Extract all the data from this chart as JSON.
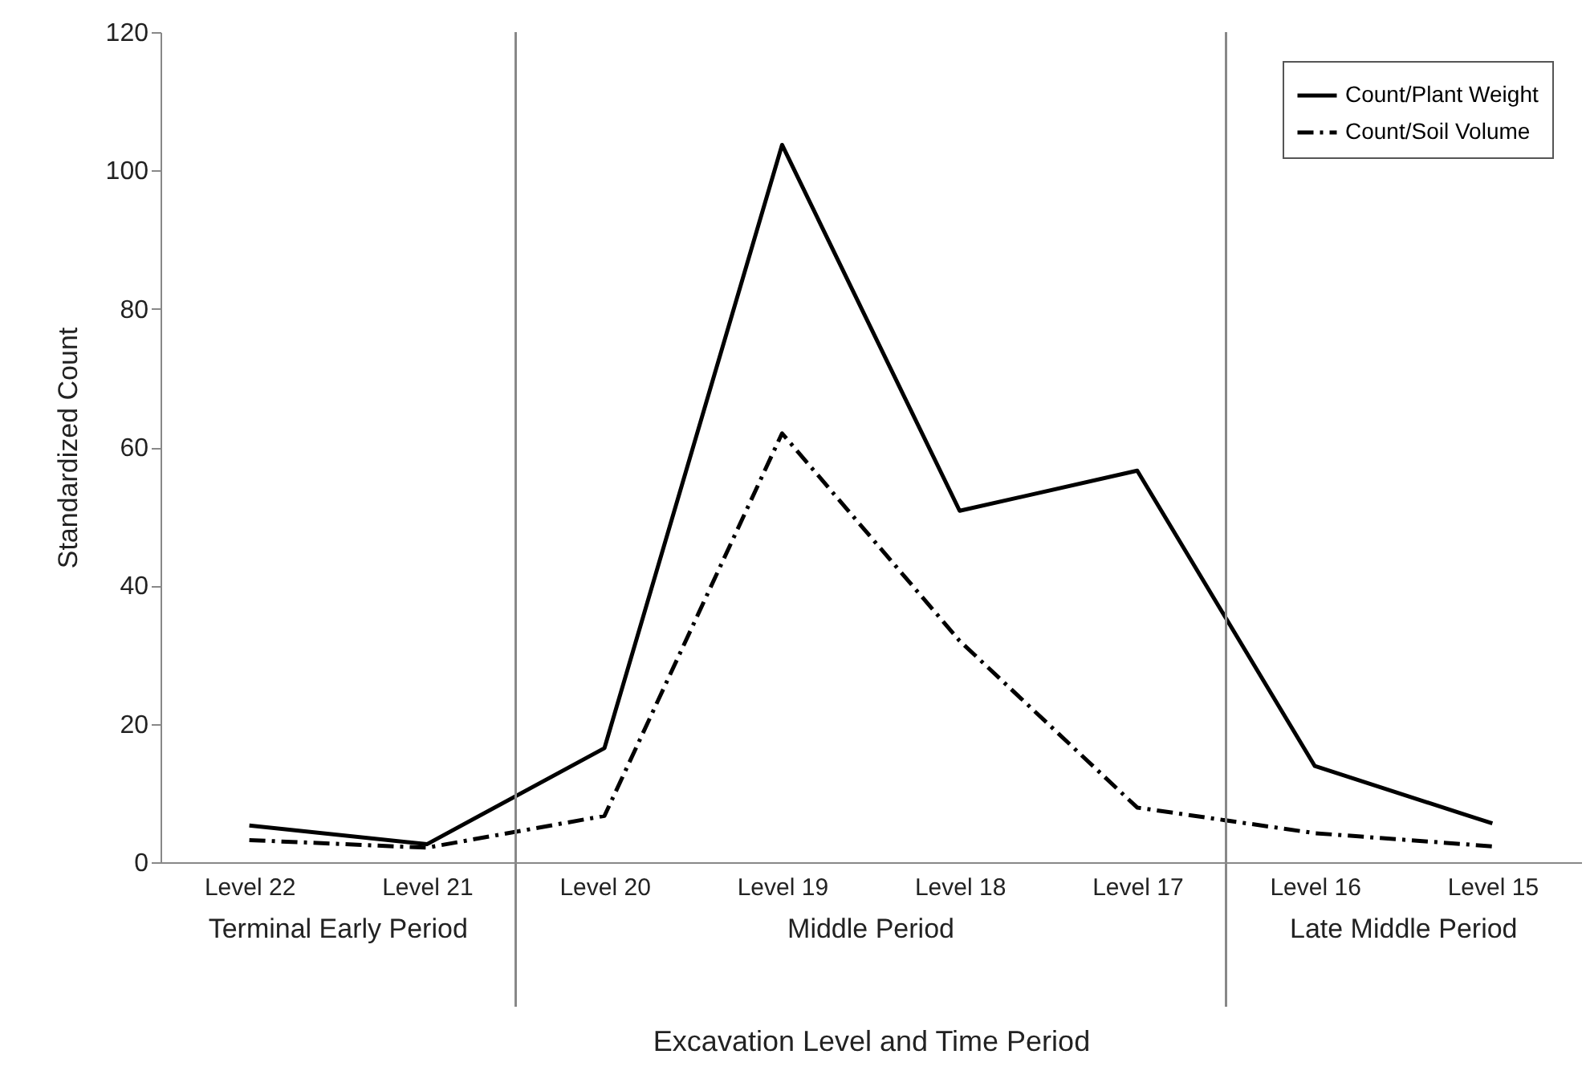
{
  "chart_data": {
    "type": "line",
    "xlabel": "Excavation Level and Time Period",
    "ylabel": "Standardized Count",
    "categories": [
      "Level 22",
      "Level 21",
      "Level 20",
      "Level 19",
      "Level 18",
      "Level 17",
      "Level 16",
      "Level 15"
    ],
    "series": [
      {
        "name": "Count/Plant Weight",
        "color": "#000000",
        "line_style": "solid",
        "values": [
          5.3,
          2.6,
          16.5,
          103.7,
          50.8,
          56.6,
          13.9,
          5.6
        ]
      },
      {
        "name": "Count/Soil Volume",
        "color": "#000000",
        "line_style": "dashed",
        "values": [
          3.2,
          2.1,
          6.7,
          62,
          32,
          7.9,
          4.2,
          2.3
        ]
      }
    ],
    "ylim": [
      0,
      120
    ],
    "yticks": [
      0,
      20,
      40,
      60,
      80,
      100,
      120
    ],
    "grid": false,
    "legend": "top right",
    "marker": "none",
    "annotations": [
      "Terminal Early Period",
      "Middle Period",
      "Late Middle Period"
    ]
  }
}
